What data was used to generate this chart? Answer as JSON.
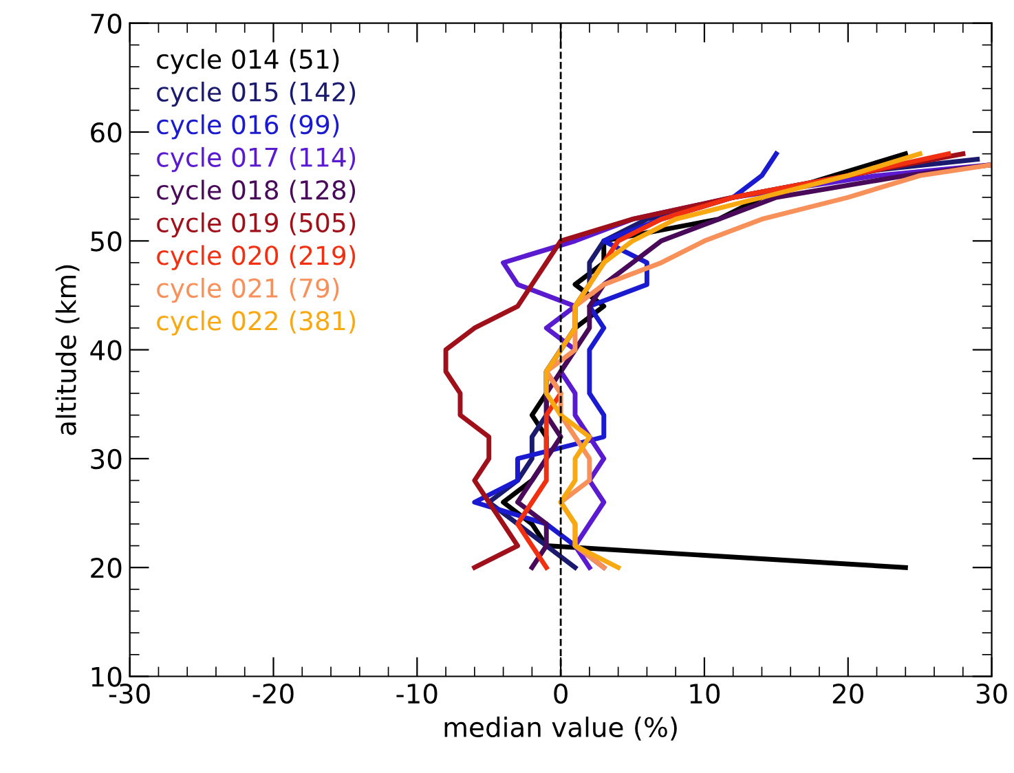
{
  "chart_data": {
    "type": "line",
    "xlabel": "median value (%)",
    "ylabel": "altitude (km)",
    "xlim": [
      -30,
      30
    ],
    "xticks": [
      -30,
      -20,
      -10,
      0,
      10,
      20,
      30
    ],
    "ylim": [
      10,
      70
    ],
    "yticks": [
      10,
      20,
      30,
      40,
      50,
      60,
      70
    ],
    "grid": false,
    "legend": "top left",
    "marker": "none",
    "line_style": "solid",
    "ref_lines": [
      {
        "axis": "x",
        "value": 0,
        "color": "#000000",
        "line_style": "dashed"
      }
    ],
    "series": [
      {
        "name": "cycle 014 (51)",
        "color": "#000000",
        "x": [
          24,
          -1,
          -2,
          -4,
          -2,
          -1,
          -1,
          -2,
          -1,
          -1,
          0,
          1,
          3,
          1,
          3,
          3,
          11,
          14,
          19,
          24
        ],
        "values": [
          20,
          22,
          24,
          26,
          28,
          30,
          32,
          34,
          36,
          38,
          40,
          42,
          44,
          46,
          48,
          50,
          52,
          54,
          56,
          58
        ]
      },
      {
        "name": "cycle 015 (142)",
        "color": "#1a1a6e",
        "x": [
          1,
          -1,
          -3,
          -5,
          -3,
          -2,
          -2,
          -1,
          -1,
          -1,
          0,
          1,
          1,
          2,
          2,
          3,
          6,
          12,
          22,
          29
        ],
        "values": [
          20,
          22,
          24,
          26,
          28,
          30,
          32,
          34,
          36,
          38,
          40,
          42,
          44,
          46,
          48,
          50,
          52,
          54,
          56.5,
          57.5
        ]
      },
      {
        "name": "cycle 016 (99)",
        "color": "#1a1ad0",
        "x": [
          3,
          1,
          -1,
          -6,
          -3,
          -3,
          3,
          3,
          2,
          2,
          2,
          3,
          2,
          6,
          6,
          3,
          7,
          12,
          14,
          15
        ],
        "values": [
          20,
          22,
          24,
          26,
          28,
          30,
          32,
          34,
          36,
          38,
          40,
          42,
          44,
          46,
          48,
          50,
          52,
          54,
          56,
          58
        ]
      },
      {
        "name": "cycle 017 (114)",
        "color": "#5a1ad0",
        "x": [
          2,
          1,
          2,
          3,
          2,
          3,
          2,
          1,
          1,
          0,
          1,
          -1,
          1,
          -3,
          -4,
          1,
          5,
          12,
          22,
          30
        ],
        "values": [
          20,
          22,
          24,
          26,
          28,
          30,
          32,
          34,
          36,
          38,
          40,
          42,
          44,
          46,
          48,
          50,
          52,
          54,
          56,
          57
        ]
      },
      {
        "name": "cycle 018 (128)",
        "color": "#4a0a5a",
        "x": [
          -2,
          -1,
          -1,
          -3,
          -2,
          -1,
          0,
          -1,
          -1,
          0,
          1,
          2,
          2,
          3,
          5,
          7,
          11,
          15,
          24,
          30
        ],
        "values": [
          20,
          22,
          24,
          26,
          28,
          30,
          32,
          34,
          36,
          38,
          40,
          42,
          44,
          46,
          48,
          50,
          52,
          54,
          56,
          57
        ]
      },
      {
        "name": "cycle 019 (505)",
        "color": "#a0101a",
        "x": [
          -6,
          -3,
          -4,
          -5,
          -6,
          -5,
          -5,
          -7,
          -7,
          -8,
          -8,
          -6,
          -3,
          -2,
          -1,
          0,
          5,
          12,
          20,
          28
        ],
        "values": [
          20,
          22,
          24,
          26,
          28,
          30,
          32,
          34,
          36,
          38,
          40,
          42,
          44,
          46,
          48,
          50,
          52,
          54,
          56,
          58
        ]
      },
      {
        "name": "cycle 020 (219)",
        "color": "#f03010",
        "x": [
          -1,
          -2,
          -3,
          -2,
          -1,
          -1,
          -1,
          -1,
          0,
          -1,
          0,
          1,
          1,
          2,
          3,
          4,
          7,
          12,
          20,
          27
        ],
        "values": [
          20,
          22,
          24,
          26,
          28,
          30,
          32,
          34,
          36,
          38,
          40,
          42,
          44,
          46,
          48,
          50,
          52,
          54,
          56,
          58
        ]
      },
      {
        "name": "cycle 021 (79)",
        "color": "#f8905a",
        "x": [
          3,
          1,
          1,
          0,
          2,
          2,
          1,
          0,
          0,
          -1,
          1,
          1,
          1,
          3,
          7,
          10,
          14,
          20,
          25,
          30
        ],
        "values": [
          20,
          22,
          24,
          26,
          28,
          30,
          32,
          34,
          36,
          38,
          40,
          42,
          44,
          46,
          48,
          50,
          52,
          54,
          56,
          57
        ]
      },
      {
        "name": "cycle 022 (381)",
        "color": "#f8a810",
        "x": [
          4,
          1,
          1,
          0,
          1,
          1,
          2,
          0,
          -1,
          -1,
          0,
          1,
          1,
          2,
          3,
          5,
          8,
          14,
          20,
          25
        ],
        "values": [
          20,
          22,
          24,
          26,
          28,
          30,
          32,
          34,
          36,
          38,
          40,
          42,
          44,
          46,
          48,
          50,
          52,
          54,
          56,
          58
        ]
      }
    ]
  }
}
